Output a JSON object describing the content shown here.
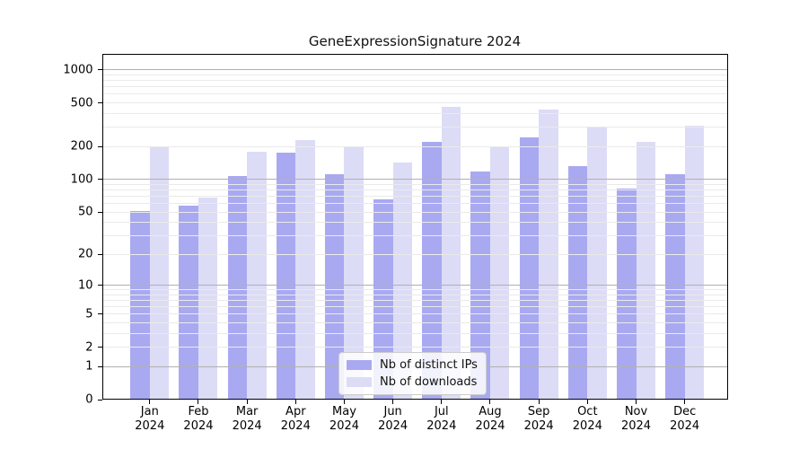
{
  "title": "GeneExpressionSignature 2024",
  "legend": {
    "items": [
      {
        "label": "Nb of distinct IPs",
        "color": "#a9a9f1"
      },
      {
        "label": "Nb of downloads",
        "color": "#dcdcf6"
      }
    ]
  },
  "chart_data": {
    "type": "bar",
    "title": "GeneExpressionSignature 2024",
    "categories": [
      "Jan",
      "Feb",
      "Mar",
      "Apr",
      "May",
      "Jun",
      "Jul",
      "Aug",
      "Sep",
      "Oct",
      "Nov",
      "Dec"
    ],
    "year_label": "2024",
    "series": [
      {
        "name": "Nb of distinct IPs",
        "color": "#a9a9f1",
        "values": [
          51,
          57,
          107,
          176,
          111,
          65,
          222,
          117,
          242,
          133,
          83,
          112
        ]
      },
      {
        "name": "Nb of downloads",
        "color": "#dcdcf6",
        "values": [
          202,
          68,
          178,
          231,
          201,
          142,
          458,
          198,
          434,
          297,
          219,
          308
        ]
      }
    ],
    "xlabel": "",
    "ylabel": "",
    "yscale": "log1p",
    "ylim": [
      0,
      1400
    ],
    "yticks": [
      0,
      1,
      2,
      5,
      10,
      20,
      50,
      100,
      200,
      500,
      1000
    ],
    "grid": {
      "on": true,
      "drawn_above_bars": true,
      "major": [
        1,
        10,
        100,
        1000
      ],
      "minor": [
        2,
        3,
        4,
        5,
        6,
        7,
        8,
        9,
        20,
        30,
        40,
        50,
        60,
        70,
        80,
        90,
        200,
        300,
        400,
        500,
        600,
        700,
        800,
        900
      ],
      "major_color": "#b0b0b0",
      "minor_color": "#eaeaea"
    },
    "legend_position": "inside lower center"
  }
}
